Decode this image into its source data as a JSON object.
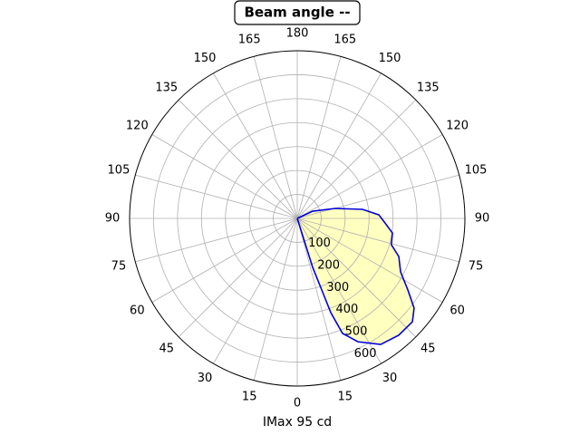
{
  "chart_data": {
    "type": "polar",
    "title": "Beam angle --",
    "xlabel": "IMax 95 cd",
    "rlim": [
      0,
      700
    ],
    "rticks": [
      100,
      200,
      300,
      400,
      500,
      600
    ],
    "thetaticks": [
      0,
      15,
      30,
      45,
      60,
      75,
      90,
      105,
      120,
      135,
      150,
      165,
      180,
      {
        "value": -15,
        "label": "15"
      },
      {
        "value": -30,
        "label": "30"
      },
      {
        "value": -45,
        "label": "45"
      },
      {
        "value": -60,
        "label": "60"
      },
      {
        "value": -75,
        "label": "75"
      },
      {
        "value": -90,
        "label": "90"
      },
      {
        "value": -105,
        "label": "105"
      },
      {
        "value": -120,
        "label": "120"
      },
      {
        "value": -135,
        "label": "135"
      },
      {
        "value": -150,
        "label": "150"
      },
      {
        "value": -165,
        "label": "165"
      }
    ],
    "grid": true,
    "series": [
      {
        "color": "#0000dd",
        "fill": "#ffffc0",
        "theta": [
          18,
          17.5,
          18.9,
          19.6,
          21.5,
          26.2,
          33.5,
          41,
          48.1,
          52.5,
          57.1,
          62.6,
          69.4,
          74.4,
          81.3,
          87.6,
          92.5,
          97.9,
          104.7,
          115,
          120
        ],
        "values": [
          0,
          214,
          316,
          418,
          516,
          574,
          631,
          646,
          646,
          615,
          550,
          486,
          453,
          408,
          402,
          364,
          341,
          275,
          164,
          71,
          0
        ]
      }
    ]
  }
}
